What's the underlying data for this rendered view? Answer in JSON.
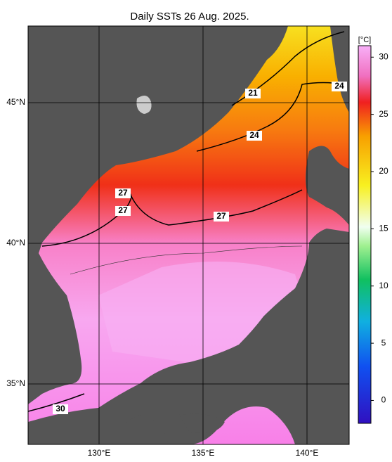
{
  "title": "Daily SSTs 26 Aug. 2025.",
  "axes": {
    "x_ticks": [
      {
        "value": 130,
        "label": "130°E"
      },
      {
        "value": 135,
        "label": "135°E"
      },
      {
        "value": 140,
        "label": "140°E"
      }
    ],
    "y_ticks": [
      {
        "value": 45,
        "label": "45°N"
      },
      {
        "value": 40,
        "label": "40°N"
      },
      {
        "value": 35,
        "label": "35°N"
      }
    ]
  },
  "colorbar": {
    "unit": "[°C]",
    "range": [
      -2,
      31
    ],
    "ticks": [
      0,
      5,
      10,
      15,
      20,
      25,
      30
    ]
  },
  "contour_labels": [
    21,
    24,
    24,
    27,
    27,
    27,
    30
  ]
}
